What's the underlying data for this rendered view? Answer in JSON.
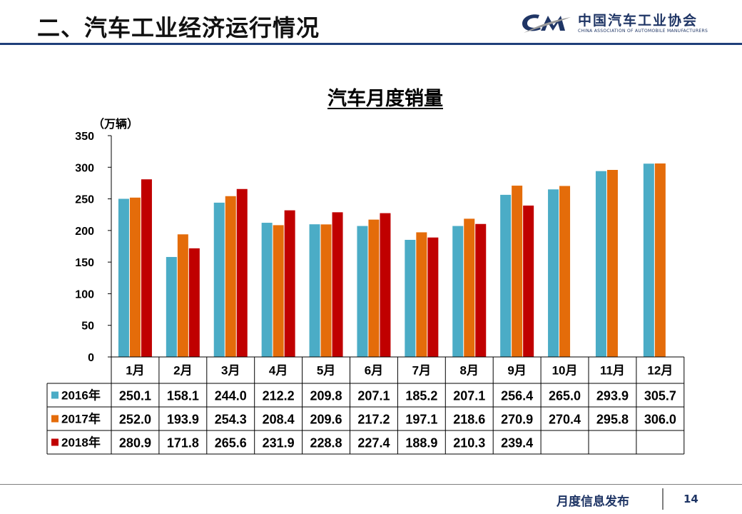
{
  "header": {
    "title": "二、汽车工业经济运行情况",
    "logo_cn": "中国汽车工业协会",
    "logo_en": "CHINA ASSOCIATION OF AUTOMOBILE MANUFACTURERS"
  },
  "footer": {
    "label": "月度信息发布",
    "page": "14"
  },
  "chart_data": {
    "type": "bar",
    "title": "汽车月度销量",
    "ylabel": "（万辆）",
    "xlabel": "",
    "ylim": [
      0,
      350
    ],
    "yticks": [
      0,
      50,
      100,
      150,
      200,
      250,
      300,
      350
    ],
    "categories": [
      "1月",
      "2月",
      "3月",
      "4月",
      "5月",
      "6月",
      "7月",
      "8月",
      "9月",
      "10月",
      "11月",
      "12月"
    ],
    "series": [
      {
        "name": "2016年",
        "color": "#4bacc6",
        "values": [
          250.1,
          158.1,
          244.0,
          212.2,
          209.8,
          207.1,
          185.2,
          207.1,
          256.4,
          265.0,
          293.9,
          305.7
        ]
      },
      {
        "name": "2017年",
        "color": "#e46c0a",
        "values": [
          252.0,
          193.9,
          254.3,
          208.4,
          209.6,
          217.2,
          197.1,
          218.6,
          270.9,
          270.4,
          295.8,
          306.0
        ]
      },
      {
        "name": "2018年",
        "color": "#c00000",
        "values": [
          280.9,
          171.8,
          265.6,
          231.9,
          228.8,
          227.4,
          188.9,
          210.3,
          239.4,
          null,
          null,
          null
        ]
      }
    ],
    "data_table": true,
    "grid": false,
    "legend": "data-table"
  }
}
